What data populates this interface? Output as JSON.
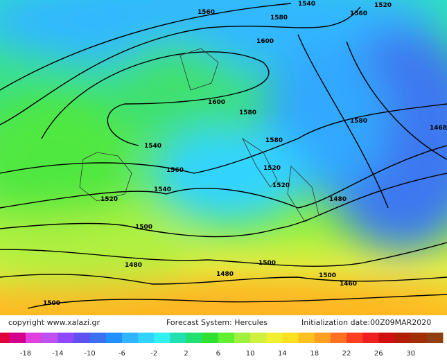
{
  "footer": {
    "copyright": "copyright  www.xalazi.gr",
    "system": "Forecast System: Hercules",
    "init": "Initialization date:00Z09MAR2020"
  },
  "contour_labels": [
    "1540",
    "1520",
    "1560",
    "1580",
    "1600",
    "1560",
    "1600",
    "1580",
    "1580",
    "1540",
    "1520",
    "1520",
    "1468",
    "1580",
    "1560",
    "1540",
    "1520",
    "1500",
    "1480",
    "1480",
    "1500",
    "1480",
    "1460",
    "1500",
    "1500"
  ],
  "colorbar": {
    "labels": [
      "-18",
      "-14",
      "-10",
      "-6",
      "-2",
      "2",
      "6",
      "10",
      "14",
      "18",
      "22",
      "26",
      "30"
    ],
    "colors": [
      "#e0003c",
      "#d4008c",
      "#e040e0",
      "#c050f0",
      "#9048ff",
      "#6050f0",
      "#3c70f0",
      "#2090ff",
      "#30b4ff",
      "#30d4ff",
      "#30f0f0",
      "#20e0b0",
      "#20e070",
      "#30e030",
      "#60f030",
      "#a0f040",
      "#d0f040",
      "#f0f030",
      "#ffe020",
      "#ffc020",
      "#ffa020",
      "#ff7020",
      "#ff4020",
      "#f02020",
      "#d01010",
      "#b02000",
      "#a03000",
      "#904010"
    ]
  }
}
